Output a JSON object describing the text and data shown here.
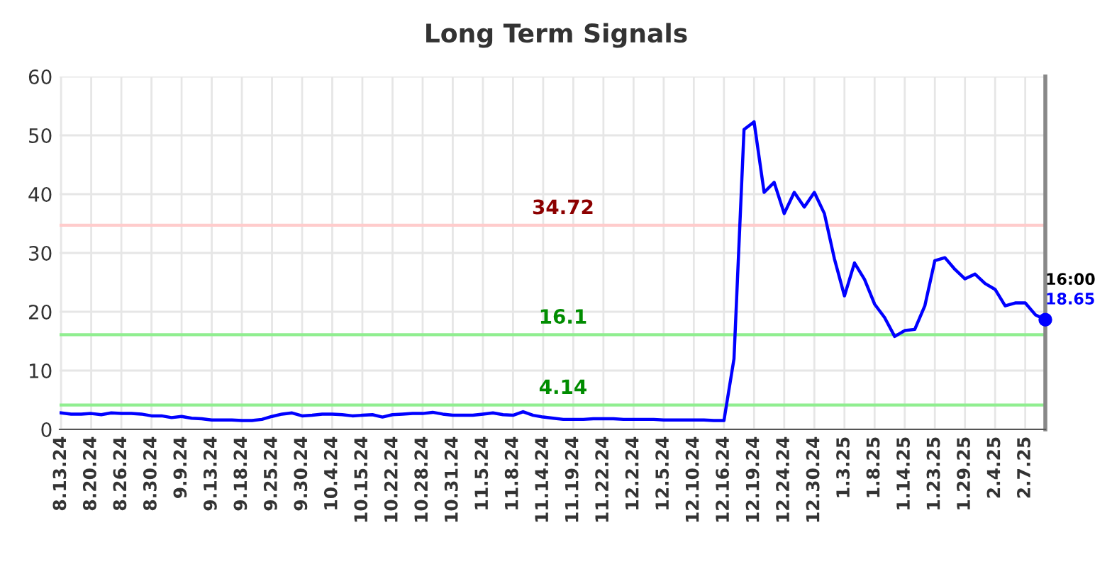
{
  "chart_data": {
    "type": "line",
    "title": "Long Term Signals",
    "categories": [
      "8.13.24",
      null,
      null,
      "8.20.24",
      null,
      null,
      "8.26.24",
      null,
      null,
      "8.30.24",
      null,
      null,
      "9.9.24",
      null,
      null,
      "9.13.24",
      null,
      null,
      "9.18.24",
      null,
      null,
      "9.25.24",
      null,
      null,
      "9.30.24",
      null,
      null,
      "10.4.24",
      null,
      null,
      "10.15.24",
      null,
      null,
      "10.22.24",
      null,
      null,
      "10.28.24",
      null,
      null,
      "10.31.24",
      null,
      null,
      "11.5.24",
      null,
      null,
      "11.8.24",
      null,
      null,
      "11.14.24",
      null,
      null,
      "11.19.24",
      null,
      null,
      "11.22.24",
      null,
      null,
      "12.2.24",
      null,
      null,
      "12.5.24",
      null,
      null,
      "12.10.24",
      null,
      null,
      "12.16.24",
      null,
      null,
      "12.19.24",
      null,
      null,
      "12.24.24",
      null,
      null,
      "12.30.24",
      null,
      null,
      "1.3.25",
      null,
      null,
      "1.8.25",
      null,
      null,
      "1.14.25",
      null,
      null,
      "1.23.25",
      null,
      null,
      "1.29.25",
      null,
      null,
      "2.4.25",
      null,
      null,
      "2.7.25",
      null,
      null
    ],
    "ylim": [
      0,
      60
    ],
    "yticks": [
      0,
      10,
      20,
      30,
      40,
      50,
      60
    ],
    "grid": true,
    "marker": "none",
    "line_style": "solid",
    "series": [
      {
        "color": "#0000ff",
        "values": [
          2.8,
          2.6,
          2.6,
          2.7,
          2.5,
          2.8,
          2.7,
          2.7,
          2.6,
          2.3,
          2.3,
          2.0,
          2.2,
          1.9,
          1.8,
          1.6,
          1.6,
          1.6,
          1.5,
          1.5,
          1.7,
          2.2,
          2.6,
          2.8,
          2.3,
          2.4,
          2.6,
          2.6,
          2.5,
          2.3,
          2.4,
          2.5,
          2.1,
          2.5,
          2.6,
          2.7,
          2.7,
          2.9,
          2.6,
          2.4,
          2.4,
          2.4,
          2.6,
          2.8,
          2.5,
          2.4,
          3.0,
          2.4,
          2.1,
          1.9,
          1.7,
          1.7,
          1.7,
          1.8,
          1.8,
          1.8,
          1.7,
          1.7,
          1.7,
          1.7,
          1.6,
          1.6,
          1.6,
          1.6,
          1.6,
          1.5,
          1.5,
          12,
          51,
          52.3,
          40.3,
          42,
          36.7,
          40.3,
          37.8,
          40.3,
          36.7,
          29,
          22.7,
          28.3,
          25.5,
          21.3,
          19,
          15.8,
          16.8,
          17,
          21,
          28.7,
          29.2,
          27.2,
          25.6,
          26.4,
          24.8,
          23.8,
          21,
          21.5,
          21.5,
          19.5,
          18.65
        ]
      }
    ],
    "ref_lines": [
      {
        "axis": "y",
        "value": 34.72,
        "label": "34.72",
        "color": "#ffcccc"
      },
      {
        "axis": "y",
        "value": 16.1,
        "label": "16.1",
        "color": "#90ee90"
      },
      {
        "axis": "y",
        "value": 4.14,
        "label": "4.14",
        "color": "#90ee90"
      }
    ],
    "annotations": [
      "16:00",
      "18.65"
    ]
  }
}
